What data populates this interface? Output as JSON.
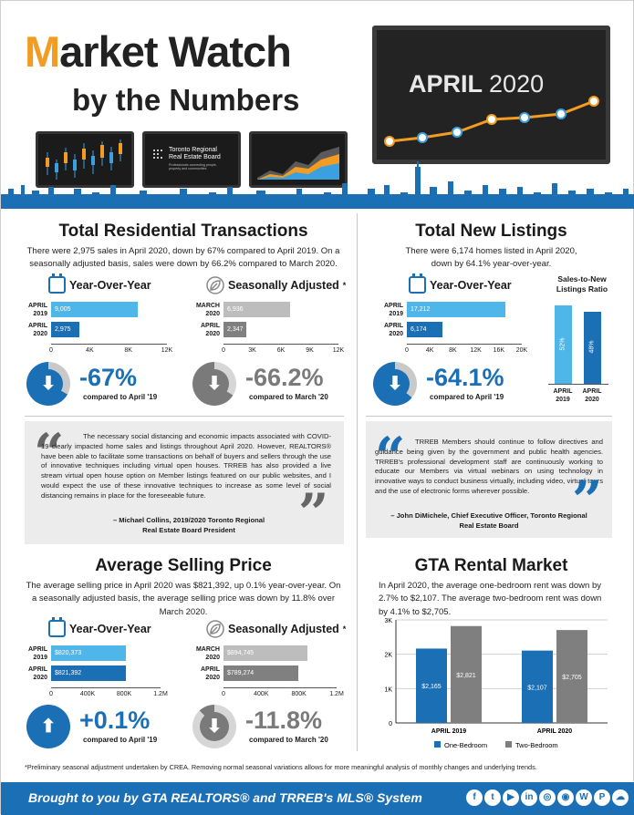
{
  "header": {
    "title_m": "M",
    "title_rest": "arket Watch",
    "subtitle": "by the Numbers",
    "month": "APRIL",
    "year": "2020",
    "trreb_logo_line1": "Toronto Regional",
    "trreb_logo_line2": "Real Estate Board",
    "trreb_logo_tag": "Professionals connecting people, property and communities."
  },
  "transactions": {
    "title": "Total Residential Transactions",
    "desc": "There were 2,975 sales in April 2020, down by 67% compared to April 2019. On a seasonally adjusted basis, sales were down by 66.2% compared to March 2020.",
    "yoy": {
      "heading": "Year-Over-Year",
      "rows": [
        {
          "label1": "APRIL",
          "label2": "2019",
          "value": 9005,
          "display": "9,005",
          "color": "#4fb6ea"
        },
        {
          "label1": "APRIL",
          "label2": "2020",
          "value": 2975,
          "display": "2,975",
          "color": "#1a6fb5"
        }
      ],
      "max": 12000,
      "ticks": [
        "0",
        "4K",
        "8K",
        "12K"
      ],
      "pct": "-67%",
      "pct_fraction": 0.67,
      "compare": "compared to April '19"
    },
    "sa": {
      "heading": "Seasonally Adjusted",
      "asterisk": "*",
      "rows": [
        {
          "label1": "MARCH",
          "label2": "2020",
          "value": 6936,
          "display": "6,936",
          "color": "#bdbdbd"
        },
        {
          "label1": "APRIL",
          "label2": "2020",
          "value": 2347,
          "display": "2,347",
          "color": "#808080"
        }
      ],
      "max": 12000,
      "ticks": [
        "0",
        "3K",
        "6K",
        "9K",
        "12K"
      ],
      "pct": "-66.2%",
      "pct_fraction": 0.662,
      "compare": "compared to March '20"
    }
  },
  "listings": {
    "title": "Total New Listings",
    "desc": "There were 6,174 homes listed in April 2020, down by 64.1% year-over-year.",
    "yoy": {
      "heading": "Year-Over-Year",
      "rows": [
        {
          "label1": "APRIL",
          "label2": "2019",
          "value": 17212,
          "display": "17,212",
          "color": "#4fb6ea"
        },
        {
          "label1": "APRIL",
          "label2": "2020",
          "value": 6174,
          "display": "6,174",
          "color": "#1a6fb5"
        }
      ],
      "max": 20000,
      "ticks": [
        "0",
        "4K",
        "8K",
        "12K",
        "16K",
        "20K"
      ],
      "pct": "-64.1%",
      "pct_fraction": 0.641,
      "compare": "compared to April '19"
    },
    "ratio": {
      "heading": "Sales-to-New Listings Ratio",
      "bars": [
        {
          "value": 52,
          "display": "52%",
          "label1": "APRIL",
          "label2": "2019",
          "color": "#4fb6ea"
        },
        {
          "value": 48,
          "display": "48%",
          "label1": "APRIL",
          "label2": "2020",
          "color": "#1a6fb5"
        }
      ]
    }
  },
  "quote1": {
    "text": "The necessary social distancing and economic impacts associated with COVID-19 clearly impacted home sales and listings throughout April 2020. However, REALTORS® have been able to facilitate some transactions on behalf of buyers and sellers through the use of innovative techniques including virtual open houses. TRREB has also provided a live stream virtual open house option on Member listings featured on our public websites, and I would expect the use of these innovative techniques to increase as some level of social distancing remains in place for the foreseeable future.",
    "author1": "– Michael Collins, 2019/2020 Toronto Regional",
    "author2": "Real Estate Board President"
  },
  "quote2": {
    "text": "TRREB Members should continue to follow directives and guidance being given by the government and public health agencies. TRREB's professional development staff are continuously working to educate our Members via virtual webinars on using technology in innovative ways to conduct business virtually, including video, virtual tours and the use of electronic forms wherever possible.",
    "author1": "– John DiMichele, Chief Executive Officer, Toronto Regional",
    "author2": "Real Estate Board"
  },
  "price": {
    "title": "Average Selling Price",
    "desc": "The average selling price in April 2020 was $821,392, up 0.1% year-over-year. On a seasonally adjusted basis, the average selling price was down by 11.8% over March 2020.",
    "yoy": {
      "heading": "Year-Over-Year",
      "rows": [
        {
          "label1": "APRIL",
          "label2": "2019",
          "value": 820373,
          "display": "$820,373",
          "color": "#4fb6ea"
        },
        {
          "label1": "APRIL",
          "label2": "2020",
          "value": 821392,
          "display": "$821,392",
          "color": "#1a6fb5"
        }
      ],
      "max": 1200000,
      "ticks": [
        "0",
        "400K",
        "800K",
        "1.2M"
      ],
      "pct": "+0.1%",
      "pct_fraction": 0.001,
      "compare": "compared to April '19"
    },
    "sa": {
      "heading": "Seasonally Adjusted",
      "asterisk": "*",
      "rows": [
        {
          "label1": "MARCH",
          "label2": "2020",
          "value": 894745,
          "display": "$894,745",
          "color": "#bdbdbd"
        },
        {
          "label1": "APRIL",
          "label2": "2020",
          "value": 789274,
          "display": "$789,274",
          "color": "#808080"
        }
      ],
      "max": 1200000,
      "ticks": [
        "0",
        "400K",
        "800K",
        "1.2M"
      ],
      "pct": "-11.8%",
      "pct_fraction": 0.118,
      "compare": "compared to March '20"
    }
  },
  "rental": {
    "title": "GTA Rental Market",
    "desc": "In April 2020, the average one-bedroom rent was down by 2.7% to $2,107. The average two-bedroom rent was down by 4.1% to $2,705.",
    "chart_data": {
      "type": "bar",
      "categories": [
        "APRIL 2019",
        "APRIL 2020"
      ],
      "series": [
        {
          "name": "One-Bedroom",
          "values": [
            2165,
            2107
          ],
          "labels": [
            "$2,165",
            "$2,107"
          ],
          "color": "#1a6fb5"
        },
        {
          "name": "Two-Bedroom",
          "values": [
            2821,
            2705
          ],
          "labels": [
            "$2,821",
            "$2,705"
          ],
          "color": "#7f7f7f"
        }
      ],
      "ylim": [
        0,
        3000
      ],
      "yticks": [
        "0",
        "1K",
        "2K",
        "3K"
      ],
      "legend": "bottom"
    }
  },
  "footnote": "*Preliminary seasonal adjustment undertaken by CREA. Removing normal seasonal variations allows for more meaningful analysis of monthly changes and underlying trends.",
  "footer": {
    "text": "Brought to you by GTA REALTORS® and TRREB's MLS® System",
    "social": [
      "f",
      "t",
      "▶",
      "in",
      "◎",
      "◉",
      "W",
      "P",
      "☁"
    ]
  },
  "colors": {
    "accent_orange": "#f39c22",
    "brand_blue": "#1a6fb5",
    "light_blue": "#4fb6ea",
    "grey_light": "#bdbdbd",
    "grey_dark": "#808080"
  }
}
